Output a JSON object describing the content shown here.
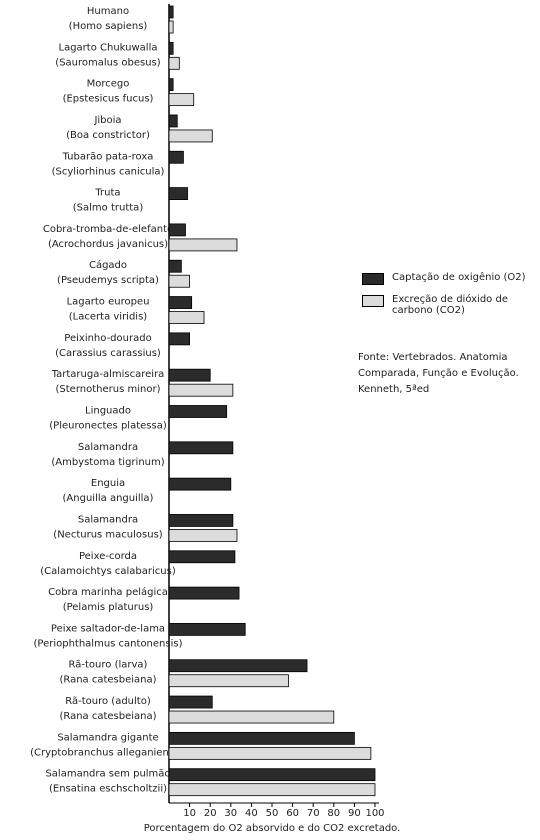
{
  "chart_data": {
    "type": "bar",
    "orientation": "horizontal",
    "xlabel": "Porcentagem do O2 absorvido e do CO2 excretado.",
    "categories": [
      [
        "Humano",
        "(Homo sapiens)"
      ],
      [
        "Lagarto Chukuwalla",
        "(Sauromalus obesus)"
      ],
      [
        "Morcego",
        "(Epstesicus fucus)"
      ],
      [
        "Jiboia",
        "(Boa constrictor)"
      ],
      [
        "Tubarão pata-roxa",
        "(Scyliorhinus canicula)"
      ],
      [
        "Truta",
        "(Salmo trutta)"
      ],
      [
        "Cobra-tromba-de-elefante",
        "(Acrochordus javanicus)"
      ],
      [
        "Cágado",
        "(Pseudemys scripta)"
      ],
      [
        "Lagarto europeu",
        "(Lacerta viridis)"
      ],
      [
        "Peixinho-dourado",
        "(Carassius carassius)"
      ],
      [
        "Tartaruga-almiscareira",
        "(Sternotherus minor)"
      ],
      [
        "Linguado",
        "(Pleuronectes platessa)"
      ],
      [
        "Salamandra",
        "(Ambystoma tigrinum)"
      ],
      [
        "Enguia",
        "(Anguilla anguilla)"
      ],
      [
        "Salamandra",
        "(Necturus maculosus)"
      ],
      [
        "Peixe-corda",
        "(Calamoichtys calabaricus)"
      ],
      [
        "Cobra marinha pelágica",
        "(Pelamis platurus)"
      ],
      [
        "Peixe saltador-de-lama",
        "(Periophthalmus cantonensis)"
      ],
      [
        "Rã-touro (larva)",
        "(Rana catesbeiana)"
      ],
      [
        "Rã-touro (adulto)",
        "(Rana catesbeiana)"
      ],
      [
        "Salamandra gigante",
        "(Cryptobranchus alleganiensis)"
      ],
      [
        "Salamandra sem pulmão",
        "(Ensatina eschscholtzii)"
      ]
    ],
    "series": [
      {
        "name": "Captação de oxigênio (O2)",
        "color": "#2b2b2b",
        "values": [
          2,
          2,
          2,
          4,
          7,
          9,
          8,
          6,
          11,
          10,
          20,
          28,
          31,
          30,
          31,
          32,
          34,
          37,
          67,
          21,
          90,
          100
        ]
      },
      {
        "name": "Excreção de dióxido de carbono (CO2)",
        "color": "#dcdcdc",
        "values": [
          2,
          5,
          12,
          21,
          null,
          null,
          33,
          10,
          17,
          null,
          31,
          null,
          null,
          null,
          33,
          null,
          null,
          null,
          58,
          80,
          98,
          100
        ]
      }
    ],
    "xlim": [
      0,
      100
    ],
    "xticks": [
      10,
      20,
      30,
      40,
      50,
      60,
      70,
      80,
      90,
      100
    ],
    "note": [
      "Fonte: Vertebrados. Anatomia",
      "Comparada, Função e Evolução.",
      "Kenneth, 5ªed"
    ]
  }
}
